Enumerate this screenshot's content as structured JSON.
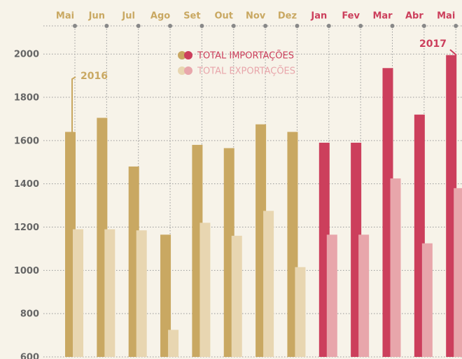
{
  "chart_data": {
    "type": "bar",
    "categories": [
      "Mai",
      "Jun",
      "Jul",
      "Ago",
      "Set",
      "Out",
      "Nov",
      "Dez",
      "Jan",
      "Fev",
      "Mar",
      "Abr",
      "Mai"
    ],
    "series": [
      {
        "name": "TOTAL IMPORTAÇÕES",
        "colors": [
          "#c9a862",
          "#c9a862",
          "#c9a862",
          "#c9a862",
          "#c9a862",
          "#c9a862",
          "#c9a862",
          "#c9a862",
          "#cc3f5c",
          "#cc3f5c",
          "#cc3f5c",
          "#cc3f5c",
          "#cc3f5c"
        ],
        "values": [
          1640,
          1705,
          1480,
          1165,
          1580,
          1565,
          1675,
          1640,
          1590,
          1590,
          1935,
          1720,
          1995
        ]
      },
      {
        "name": "TOTAL EXPORTAÇÕES",
        "colors": [
          "#e8d6b1",
          "#e8d6b1",
          "#e8d6b1",
          "#e8d6b1",
          "#e8d6b1",
          "#e8d6b1",
          "#e8d6b1",
          "#e8d6b1",
          "#e8a6ab",
          "#e8a6ab",
          "#e8a6ab",
          "#e8a6ab",
          "#e8a6ab"
        ],
        "values": [
          1190,
          1190,
          1185,
          725,
          1220,
          1160,
          1275,
          1015,
          1165,
          1165,
          1425,
          1125,
          1380
        ]
      }
    ],
    "annotations": [
      {
        "text": "2016",
        "color": "#c9a862"
      },
      {
        "text": "2017",
        "color": "#cc3f5c"
      }
    ],
    "ylim": [
      600,
      2130
    ],
    "yticks": [
      600,
      800,
      1000,
      1200,
      1400,
      1600,
      1800,
      2000
    ],
    "grid": true
  }
}
